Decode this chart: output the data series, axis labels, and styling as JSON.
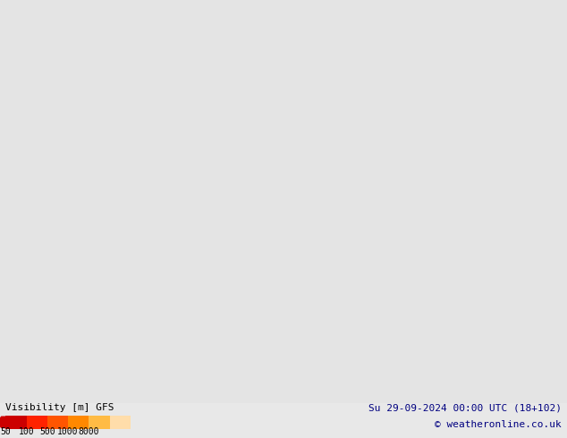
{
  "title": "Visibility GFS Su 29.09.2024 00 UTC",
  "bottom_left_label": "Visibility [m] GFS",
  "bottom_right_line1": "Su 29-09-2024 00:00 UTC (18+102)",
  "bottom_right_line2": "© weatheronline.co.uk",
  "colorbar_values": [
    50,
    100,
    500,
    1000,
    8000
  ],
  "colorbar_colors": [
    "#cc0000",
    "#ff3300",
    "#ff6600",
    "#ff9900",
    "#ffcc66",
    "#ffeeaa"
  ],
  "background_color": "#e8e8e8",
  "land_color_low": "#c8f0a0",
  "land_color_high": "#e8f8c8",
  "sea_color": "#e0e0e0",
  "label_color": "#000080",
  "font_family": "monospace",
  "figsize": [
    6.34,
    4.9
  ],
  "dpi": 100
}
